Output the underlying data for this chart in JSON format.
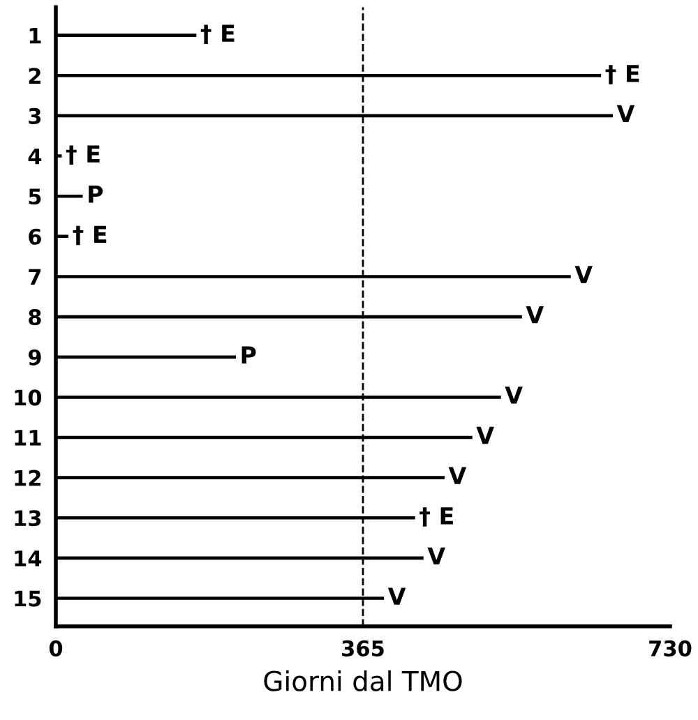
{
  "chart_data": {
    "type": "bar",
    "orientation": "horizontal",
    "xlabel": "Giorni dal TMO",
    "categories": [
      "1",
      "2",
      "3",
      "4",
      "5",
      "6",
      "7",
      "8",
      "9",
      "10",
      "11",
      "12",
      "13",
      "14",
      "15"
    ],
    "values": [
      167,
      648,
      662,
      7,
      32,
      15,
      612,
      554,
      214,
      529,
      495,
      462,
      427,
      437,
      390
    ],
    "color": "#000000",
    "xlim": [
      0,
      730
    ],
    "xticks": [
      0,
      365,
      730
    ],
    "grid": false,
    "legend": false,
    "ref_lines": [
      {
        "axis": "x",
        "value": 365,
        "label": null,
        "color": "#000000",
        "line_style": "dashed"
      }
    ],
    "annotations": [
      {
        "text": "† E",
        "x": 167,
        "y": "1"
      },
      {
        "text": "† E",
        "x": 648,
        "y": "2"
      },
      {
        "text": "V",
        "x": 662,
        "y": "3"
      },
      {
        "text": "† E",
        "x": 7,
        "y": "4"
      },
      {
        "text": "P",
        "x": 32,
        "y": "5"
      },
      {
        "text": "† E",
        "x": 15,
        "y": "6"
      },
      {
        "text": "V",
        "x": 612,
        "y": "7"
      },
      {
        "text": "V",
        "x": 554,
        "y": "8"
      },
      {
        "text": "P",
        "x": 214,
        "y": "9"
      },
      {
        "text": "V",
        "x": 529,
        "y": "10"
      },
      {
        "text": "V",
        "x": 495,
        "y": "11"
      },
      {
        "text": "V",
        "x": 462,
        "y": "12"
      },
      {
        "text": "† E",
        "x": 427,
        "y": "13"
      },
      {
        "text": "V",
        "x": 437,
        "y": "14"
      },
      {
        "text": "V",
        "x": 390,
        "y": "15"
      }
    ]
  }
}
